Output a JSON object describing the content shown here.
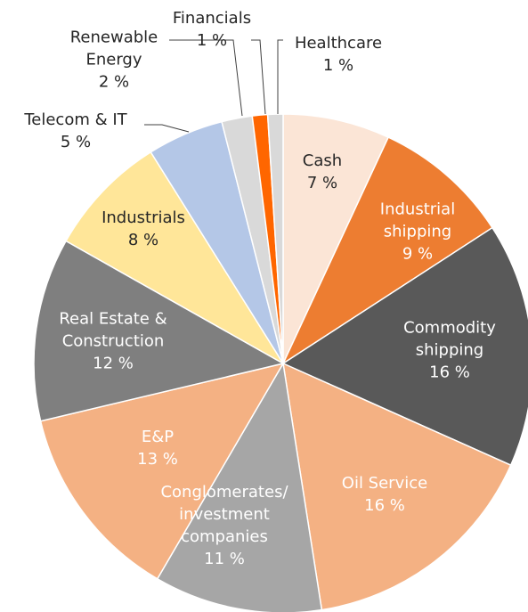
{
  "chart_data": {
    "type": "pie",
    "categories": [
      "Cash",
      "Industrial shipping",
      "Commodity shipping",
      "Oil Service",
      "Conglomerates/ investment companies",
      "E&P",
      "Real Estate & Construction",
      "Industrials",
      "Telecom & IT",
      "Renewable Energy",
      "Financials",
      "Healthcare"
    ],
    "values": [
      7,
      9,
      16,
      16,
      11,
      13,
      12,
      8,
      5,
      2,
      1,
      1
    ],
    "value_labels": [
      "7 %",
      "9 %",
      "16 %",
      "16 %",
      "11 %",
      "13 %",
      "12 %",
      "8 %",
      "5 %",
      "2 %",
      "1 %",
      "1 %"
    ],
    "colors": [
      "#fbe5d6",
      "#ed7d31",
      "#595959",
      "#f4b183",
      "#a6a6a6",
      "#f4b183",
      "#7f7f7f",
      "#ffe699",
      "#b4c7e7",
      "#d9d9d9",
      "#ff6600",
      "#d9d9d9"
    ]
  }
}
